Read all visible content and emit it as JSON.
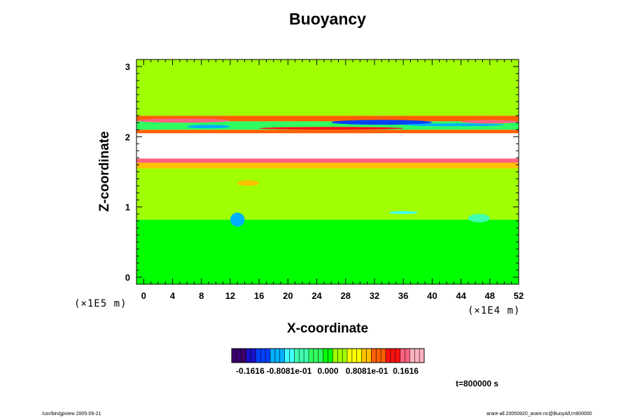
{
  "chart_data": {
    "type": "heatmap",
    "title": "Buoyancy",
    "xlabel": "X-coordinate",
    "ylabel": "Z-coordinate",
    "x_unit": "(×1E4 m)",
    "y_unit": "(×1E5 m)",
    "xlim": [
      -1,
      52
    ],
    "ylim": [
      -0.1,
      3.1
    ],
    "x_ticks": [
      0,
      4,
      8,
      12,
      16,
      20,
      24,
      28,
      32,
      36,
      40,
      44,
      48,
      52
    ],
    "y_ticks": [
      0,
      1,
      2,
      3
    ],
    "x_tick_labels": [
      "0",
      "4",
      "8",
      "12",
      "16",
      "20",
      "24",
      "28",
      "32",
      "36",
      "40",
      "44",
      "48",
      "52"
    ],
    "y_tick_labels": [
      "0",
      "1",
      "2",
      "3"
    ],
    "grid": false,
    "bands": [
      {
        "z": [
          -0.1,
          0.82
        ],
        "value": 0.0
      },
      {
        "z": [
          0.82,
          0.95
        ],
        "value": 0.02
      },
      {
        "z": [
          0.95,
          1.55
        ],
        "value": 0.03
      },
      {
        "z": [
          1.55,
          1.63
        ],
        "value": 0.07
      },
      {
        "z": [
          1.63,
          1.69
        ],
        "value": 0.15
      },
      {
        "z": [
          1.69,
          2.05
        ],
        "value": 0.2
      },
      {
        "z": [
          2.05,
          2.1
        ],
        "value": 0.12
      },
      {
        "z": [
          2.1,
          2.22
        ],
        "value": -0.03
      },
      {
        "z": [
          2.22,
          2.3
        ],
        "value": 0.1
      },
      {
        "z": [
          2.3,
          3.1
        ],
        "value": 0.03
      }
    ],
    "features": [
      {
        "x": [
          6,
          12
        ],
        "z": [
          2.12,
          2.17
        ],
        "value": -0.12
      },
      {
        "x": [
          26,
          40
        ],
        "z": [
          2.17,
          2.24
        ],
        "value": -0.14
      },
      {
        "x": [
          36,
          50
        ],
        "z": [
          2.15,
          2.19
        ],
        "value": -0.1
      },
      {
        "x": [
          12,
          14
        ],
        "z": [
          0.72,
          0.92
        ],
        "value": -0.1
      },
      {
        "x": [
          34,
          38
        ],
        "z": [
          0.9,
          0.94
        ],
        "value": -0.08
      },
      {
        "x": [
          45,
          48
        ],
        "z": [
          0.78,
          0.9
        ],
        "value": -0.06
      },
      {
        "x": [
          13,
          16
        ],
        "z": [
          1.3,
          1.38
        ],
        "value": 0.08
      },
      {
        "x": [
          -1,
          12
        ],
        "z": [
          2.2,
          2.26
        ],
        "value": 0.16
      },
      {
        "x": [
          16,
          36
        ],
        "z": [
          2.1,
          2.14
        ],
        "value": 0.14
      },
      {
        "x": [
          44,
          52
        ],
        "z": [
          2.19,
          2.24
        ],
        "value": 0.15
      }
    ],
    "colorbar": {
      "min": -0.2,
      "max": 0.2,
      "labels": [
        "-0.1616",
        "-0.8081e-01",
        "0.000",
        "0.8081e-01",
        "0.1616"
      ],
      "label_values": [
        -0.1616,
        -0.08081,
        0.0,
        0.08081,
        0.1616
      ],
      "colors": [
        "#3b006e",
        "#1a10c8",
        "#0040ff",
        "#00b0ff",
        "#40ffff",
        "#40ffb0",
        "#30ff60",
        "#00ff00",
        "#a0ff00",
        "#ffff00",
        "#ffc000",
        "#ff6000",
        "#ff1010",
        "#ff6080",
        "#ffb0c0"
      ]
    }
  },
  "annotations": {
    "time": "t=800000 s",
    "footer_left": "/usr/bin/gpview 2005-09-21",
    "footer_right": "arare-all.20050920_arare.nc@BuoyAll,t=800000"
  }
}
